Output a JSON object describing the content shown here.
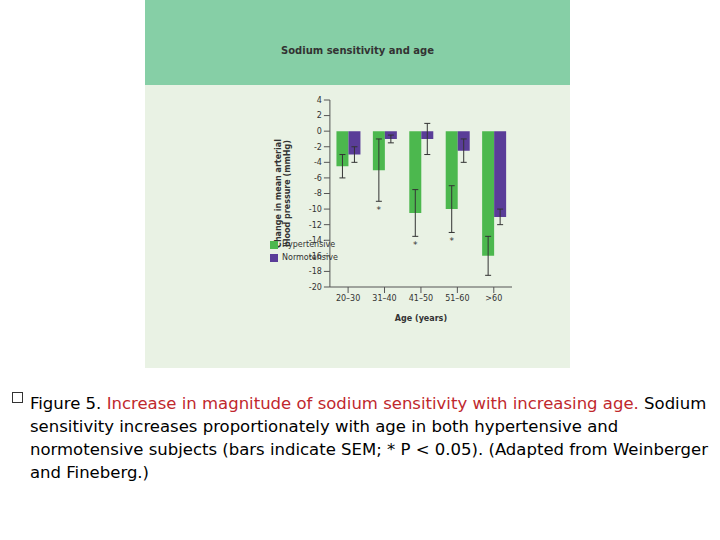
{
  "chart_data": {
    "type": "bar",
    "title": "Sodium sensitivity and age",
    "xlabel": "Age (years)",
    "ylabel": "Change in mean arterial blood pressure (mmHg)",
    "categories": [
      "20–30",
      "31–40",
      "41–50",
      "51–60",
      ">60"
    ],
    "series": [
      {
        "name": "Hypertensive",
        "color": "#4cb84e",
        "values": [
          -4.5,
          -5,
          -10.5,
          -10,
          -16
        ],
        "errors": [
          1.5,
          4,
          3,
          3,
          2.5
        ]
      },
      {
        "name": "Normotensive",
        "color": "#5a3d98",
        "values": [
          -3,
          -1,
          -1,
          -2.5,
          -11
        ],
        "errors": [
          1,
          0.5,
          2,
          1.5,
          1
        ]
      }
    ],
    "ylim": [
      -20,
      4
    ],
    "yticks": [
      4,
      2,
      0,
      -2,
      -4,
      -6,
      -8,
      -10,
      -12,
      -14,
      -16,
      -18,
      -20
    ],
    "legend": "lower left",
    "annotations": [
      {
        "category": "31–40",
        "text": "*"
      },
      {
        "category": "41–50",
        "text": "*"
      },
      {
        "category": "51–60",
        "text": "*"
      }
    ]
  },
  "caption": {
    "label": "Figure 5.",
    "headline": "Increase in magnitude of sodium sensitivity with increasing age.",
    "body": "Sodium sensitivity increases proportionately with age in both hypertensive and normotensive subjects (bars indicate SEM; * P < 0.05). (Adapted from Weinberger and Fineberg.)"
  }
}
